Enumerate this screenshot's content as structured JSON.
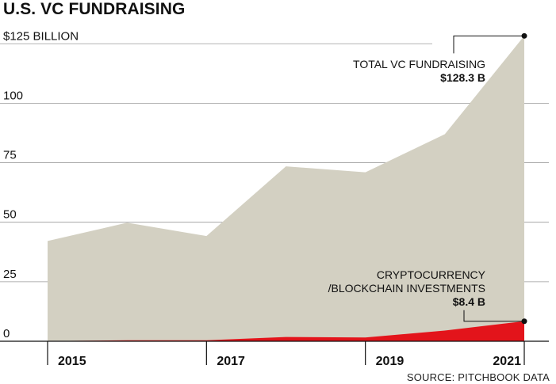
{
  "title": "U.S. VC FUNDRAISING",
  "source": "SOURCE: PITCHBOOK DATA",
  "colors": {
    "total_fill": "#d3d0c2",
    "crypto_fill": "#e3141b",
    "grid": "#9a9a9a",
    "axis": "#111111",
    "text": "#111111"
  },
  "chart_data": {
    "type": "area",
    "x": [
      2015,
      2016,
      2017,
      2018,
      2019,
      2020,
      2021
    ],
    "x_tick_labels": [
      "2015",
      "2017",
      "2019",
      "2021"
    ],
    "y_tick_labels": [
      "$125 BILLION",
      "100",
      "75",
      "50",
      "25",
      "0"
    ],
    "y_ticks": [
      125,
      100,
      75,
      50,
      25,
      0
    ],
    "ylim": [
      0,
      128.3
    ],
    "grid": true,
    "series": [
      {
        "name": "TOTAL VC FUNDRAISING",
        "values": [
          42.1,
          49.8,
          44.2,
          73.5,
          71.0,
          87.0,
          128.3
        ],
        "color": "#d3d0c2"
      },
      {
        "name": "CRYPTOCURRENCY /BLOCKCHAIN INVESTMENTS",
        "values": [
          0.1,
          0.4,
          0.4,
          1.8,
          1.6,
          4.5,
          8.4
        ],
        "color": "#e3141b"
      }
    ],
    "annotations": [
      {
        "series": 0,
        "label_lines": [
          "TOTAL VC FUNDRAISING"
        ],
        "value_label": "$128.3 B"
      },
      {
        "series": 1,
        "label_lines": [
          "CRYPTOCURRENCY",
          "/BLOCKCHAIN INVESTMENTS"
        ],
        "value_label": "$8.4 B"
      }
    ]
  }
}
